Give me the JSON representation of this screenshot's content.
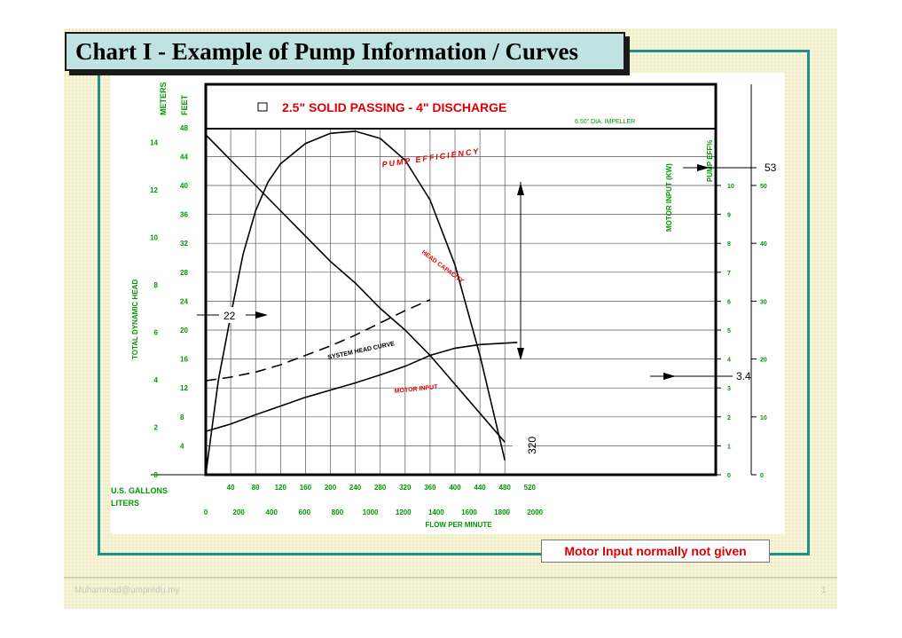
{
  "slide": {
    "title": "Chart I - Example of Pump Information / Curves",
    "note": "Motor Input normally not given",
    "footer_email": "Muhammad@umpredu.my",
    "footer_page": "1"
  },
  "colors": {
    "frame": "#1d8f8f",
    "title_bg": "#bfe3e3",
    "axis_green": "#009900",
    "label_red": "#e00000"
  },
  "chart_data": {
    "type": "line",
    "title": "2.5\" SOLID PASSING - 4\" DISCHARGE",
    "subtitle": "6.50\" DIA. IMPELLER",
    "xlabel": "FLOW PER MINUTE",
    "ylabel": "TOTAL DYNAMIC HEAD",
    "x_unit_label_gallons": "U.S. GALLONS",
    "x_unit_label_liters": "LITERS",
    "y_unit_label_meters": "METERS",
    "y_unit_label_feet": "FEET",
    "right_unit_label_motor": "MOTOR INPUT (KW)",
    "right_unit_label_eff": "PUMP EFF%",
    "xlim": [
      0,
      520
    ],
    "ylim_feet": [
      0,
      48
    ],
    "x_ticks_gallons": [
      "40",
      "80",
      "120",
      "160",
      "200",
      "240",
      "280",
      "320",
      "360",
      "400",
      "440",
      "480",
      "520"
    ],
    "x_ticks_liters": [
      "0",
      "200",
      "400",
      "600",
      "800",
      "1000",
      "1200",
      "1400",
      "1600",
      "1800",
      "2000"
    ],
    "y_ticks_feet": [
      "4",
      "8",
      "12",
      "16",
      "20",
      "24",
      "28",
      "32",
      "36",
      "40",
      "44",
      "48"
    ],
    "y_ticks_meters": [
      "0",
      "2",
      "4",
      "6",
      "8",
      "10",
      "12",
      "14"
    ],
    "motor_ticks": [
      "0",
      "1",
      "2",
      "3",
      "4",
      "5",
      "6",
      "7",
      "8",
      "9",
      "10"
    ],
    "eff_ticks": [
      "0",
      "10",
      "20",
      "30",
      "40",
      "50"
    ],
    "series": [
      {
        "name": "HEAD CAPACITY",
        "x": [
          0,
          40,
          80,
          120,
          160,
          200,
          240,
          280,
          320,
          360,
          400,
          440,
          480
        ],
        "y": [
          47,
          43.5,
          40,
          36.5,
          33,
          29.5,
          26.5,
          23,
          20,
          16.5,
          12.5,
          8.5,
          4.5
        ]
      },
      {
        "name": "PUMP EFFICIENCY",
        "x": [
          0,
          20,
          40,
          60,
          80,
          100,
          120,
          160,
          200,
          240,
          280,
          320,
          360,
          400,
          440,
          480
        ],
        "y": [
          0,
          13,
          22,
          30.5,
          36.5,
          40.5,
          43,
          45.8,
          47.2,
          47.5,
          46.5,
          43.5,
          38,
          29,
          16.5,
          2
        ]
      },
      {
        "name": "SYSTEM HEAD CURVE",
        "x": [
          0,
          40,
          80,
          120,
          160,
          200,
          240,
          280,
          320,
          360
        ],
        "y": [
          13,
          13.5,
          14.2,
          15.2,
          16.5,
          17.8,
          19.3,
          21,
          22.7,
          24.2
        ]
      },
      {
        "name": "MOTOR INPUT",
        "x": [
          0,
          40,
          80,
          120,
          160,
          200,
          240,
          280,
          320,
          360,
          400,
          440,
          480,
          500
        ],
        "y": [
          6,
          7,
          8.3,
          9.5,
          10.7,
          11.7,
          12.7,
          13.8,
          15,
          16.5,
          17.5,
          18,
          18.2,
          18.3
        ]
      }
    ],
    "annotations": {
      "left_marker": "22",
      "right_top": "53",
      "right_bottom": "3.4",
      "bottom_marker": "320"
    }
  }
}
